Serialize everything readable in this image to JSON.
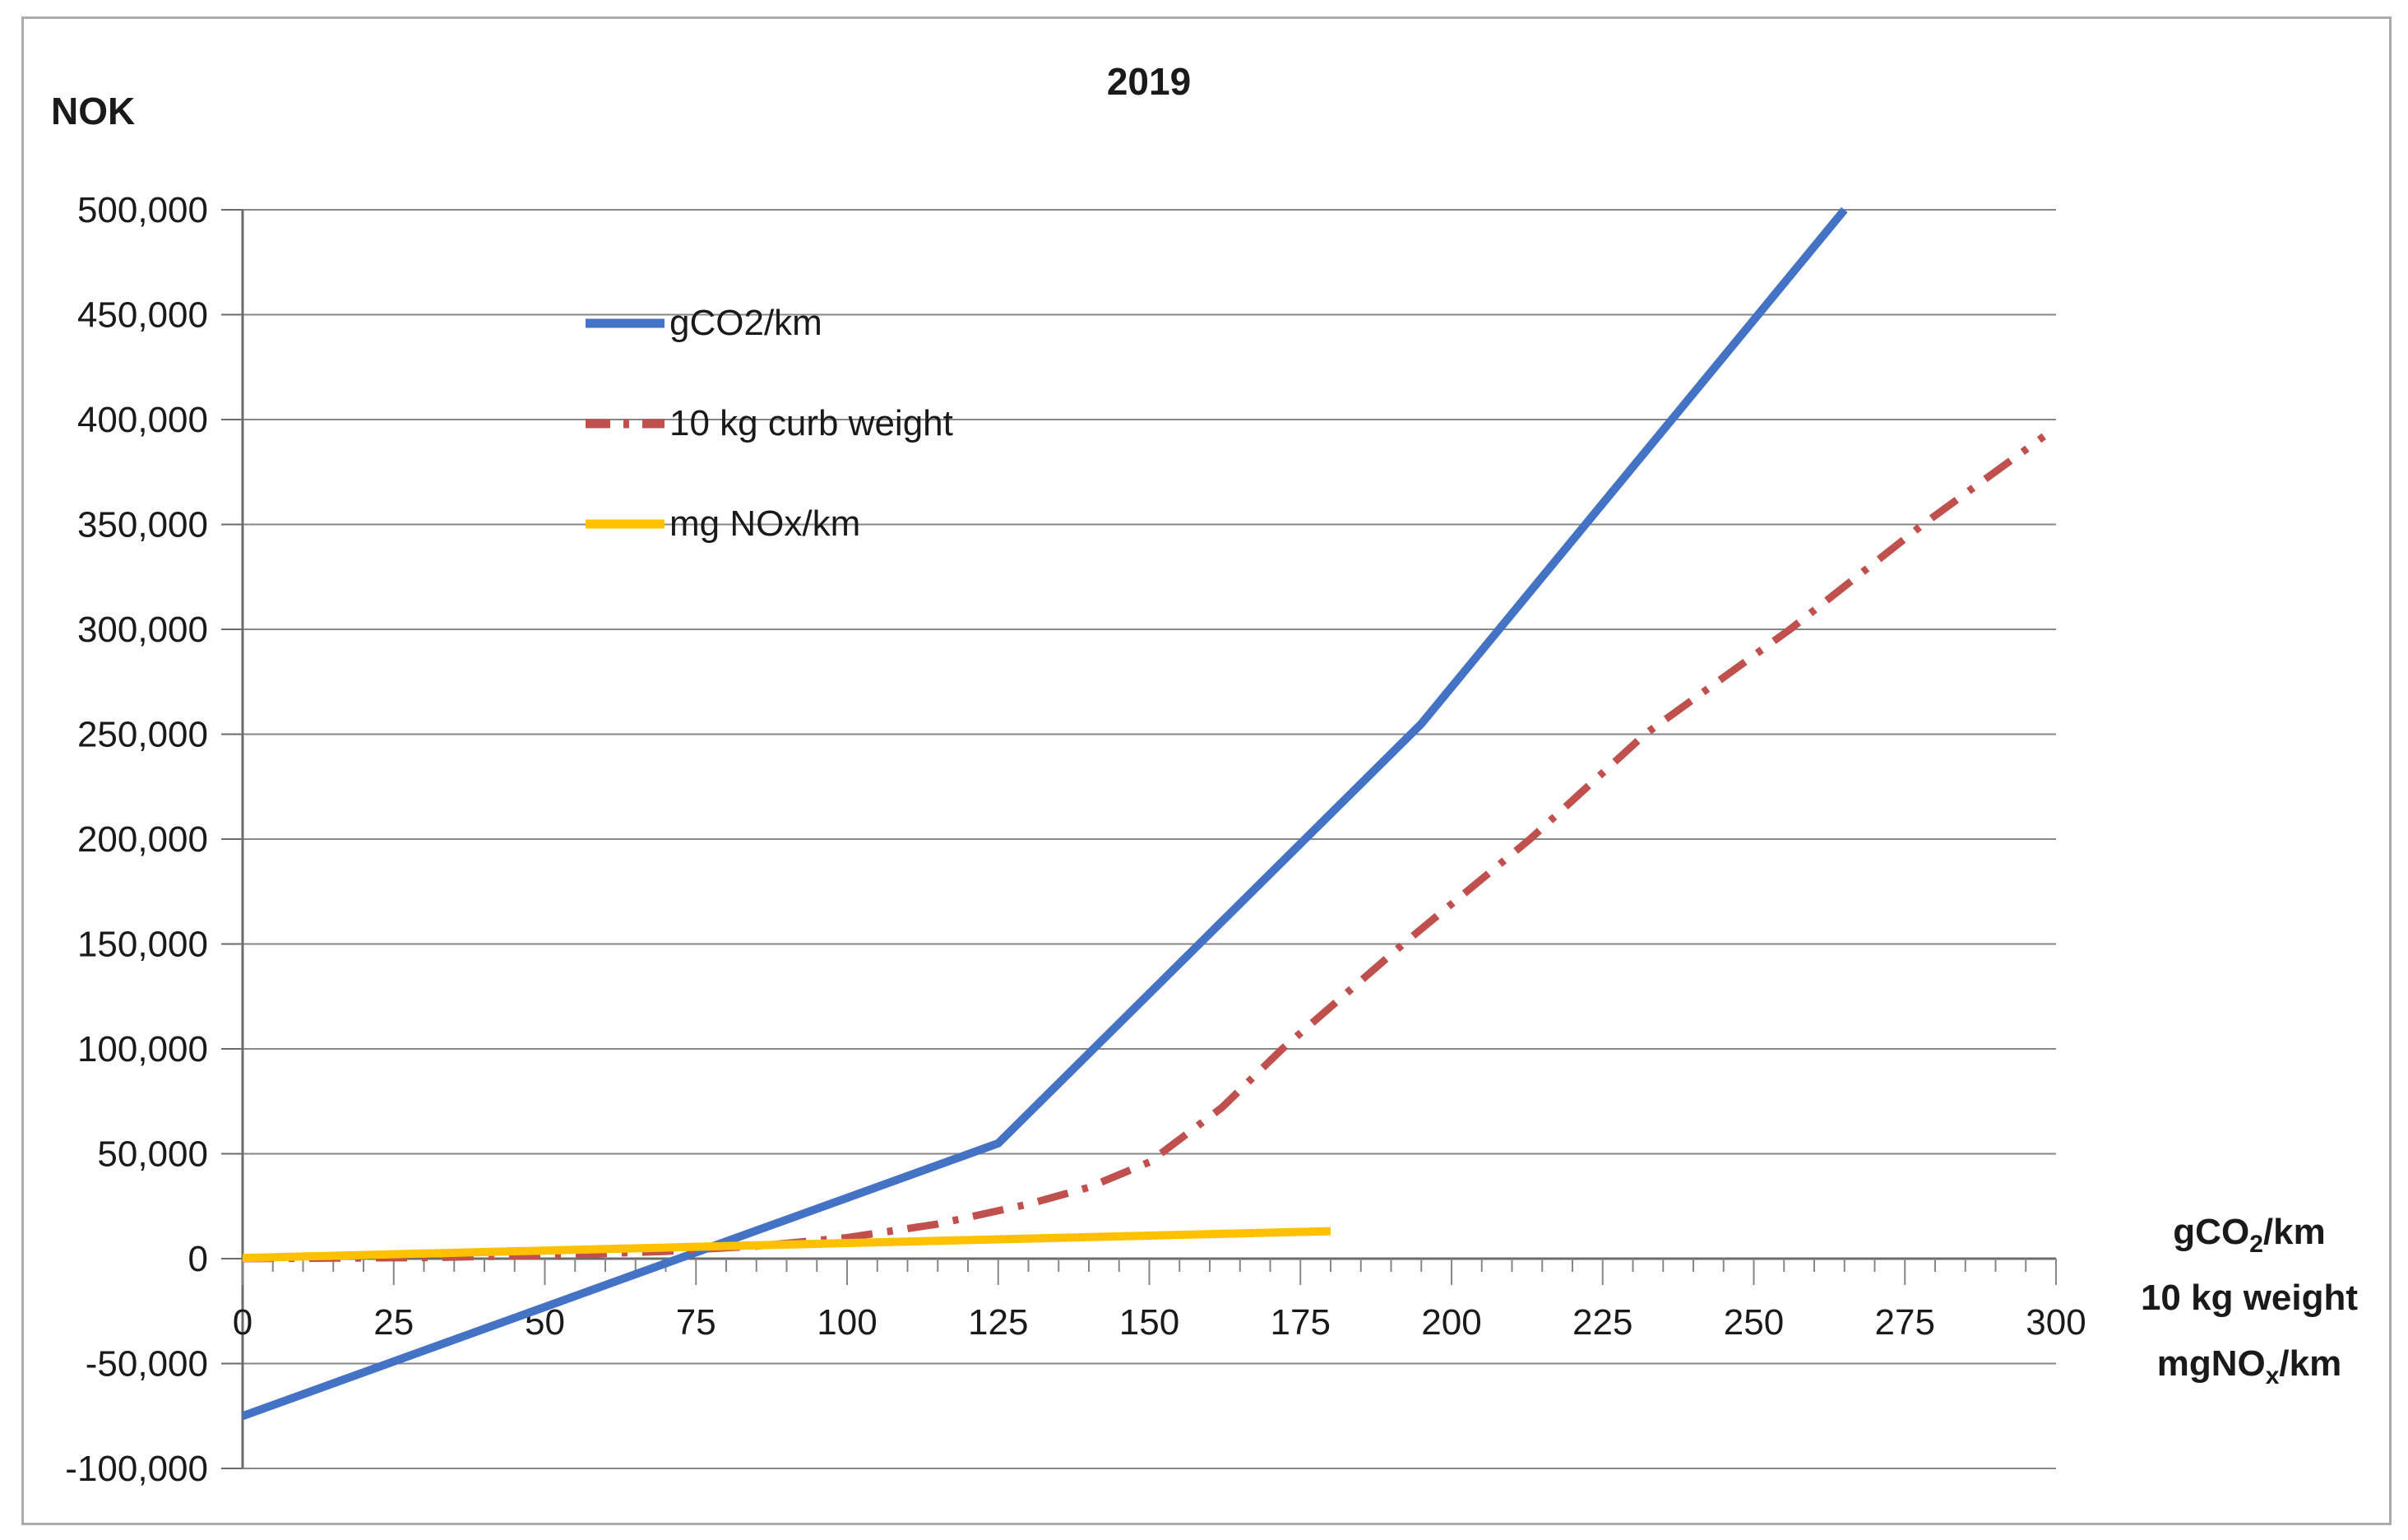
{
  "title": "2019",
  "y_axis_unit": "NOK",
  "legend": {
    "position": "inside-top-left",
    "items": [
      {
        "label": "gCO2/km",
        "color": "#4472C4",
        "style": "solid"
      },
      {
        "label": "10 kg curb weight",
        "color": "#C0504D",
        "style": "dash-dot"
      },
      {
        "label": "mg NOx/km",
        "color": "#FFC000",
        "style": "solid"
      }
    ]
  },
  "x_axis_title": {
    "line1_pre": "gCO",
    "line1_sub": "2",
    "line1_post": "/km",
    "line2": "10 kg weight",
    "line3_pre": "mgNO",
    "line3_sub": "x",
    "line3_post": "/km"
  },
  "colors": {
    "gridline": "#878787",
    "axis": "#6b6b6b",
    "border": "#ababab",
    "text": "#1a1a1a"
  },
  "chart_data": {
    "type": "line",
    "title": "2019",
    "ylabel": "NOK",
    "xlabel": "gCO2/km · 10 kg weight · mgNOx/km",
    "xlim": [
      0,
      300
    ],
    "ylim": [
      -100000,
      500000
    ],
    "grid": "horizontal",
    "legend_position": "inside-top-left",
    "x_minor_tick_step": 5,
    "x_ticks": [
      {
        "value": 0,
        "label": "0"
      },
      {
        "value": 25,
        "label": "25"
      },
      {
        "value": 50,
        "label": "50"
      },
      {
        "value": 75,
        "label": "75"
      },
      {
        "value": 100,
        "label": "100"
      },
      {
        "value": 125,
        "label": "125"
      },
      {
        "value": 150,
        "label": "150"
      },
      {
        "value": 175,
        "label": "175"
      },
      {
        "value": 200,
        "label": "200"
      },
      {
        "value": 225,
        "label": "225"
      },
      {
        "value": 250,
        "label": "250"
      },
      {
        "value": 275,
        "label": "275"
      },
      {
        "value": 300,
        "label": "300"
      }
    ],
    "y_ticks": [
      {
        "value": 500000,
        "label": "500,000"
      },
      {
        "value": 450000,
        "label": "450,000"
      },
      {
        "value": 400000,
        "label": "400,000"
      },
      {
        "value": 350000,
        "label": "350,000"
      },
      {
        "value": 300000,
        "label": "300,000"
      },
      {
        "value": 250000,
        "label": "250,000"
      },
      {
        "value": 200000,
        "label": "200,000"
      },
      {
        "value": 150000,
        "label": "150,000"
      },
      {
        "value": 100000,
        "label": "100,000"
      },
      {
        "value": 50000,
        "label": "50,000"
      },
      {
        "value": 0,
        "label": "0"
      },
      {
        "value": -50000,
        "label": "-50,000"
      },
      {
        "value": -100000,
        "label": "-100,000"
      }
    ],
    "series": [
      {
        "name": "gCO2/km",
        "color": "#4472C4",
        "style": "solid",
        "width": 10,
        "points": [
          [
            0,
            -75000
          ],
          [
            125,
            55000
          ],
          [
            195,
            255000
          ],
          [
            265,
            500000
          ]
        ]
      },
      {
        "name": "10 kg curb weight",
        "color": "#C0504D",
        "style": "dash-dot",
        "width": 9,
        "points": [
          [
            0,
            0
          ],
          [
            30,
            500
          ],
          [
            50,
            1500
          ],
          [
            70,
            3500
          ],
          [
            85,
            6000
          ],
          [
            100,
            10000
          ],
          [
            115,
            16500
          ],
          [
            130,
            26000
          ],
          [
            140,
            34000
          ],
          [
            150,
            46000
          ],
          [
            162,
            72000
          ],
          [
            172,
            100000
          ],
          [
            192,
            150000
          ],
          [
            213,
            200000
          ],
          [
            232,
            250000
          ],
          [
            256,
            300000
          ],
          [
            278,
            350000
          ],
          [
            298,
            392000
          ]
        ]
      },
      {
        "name": "mg NOx/km",
        "color": "#FFC000",
        "style": "solid",
        "width": 10,
        "points": [
          [
            0,
            300
          ],
          [
            180,
            13100
          ]
        ]
      }
    ]
  }
}
